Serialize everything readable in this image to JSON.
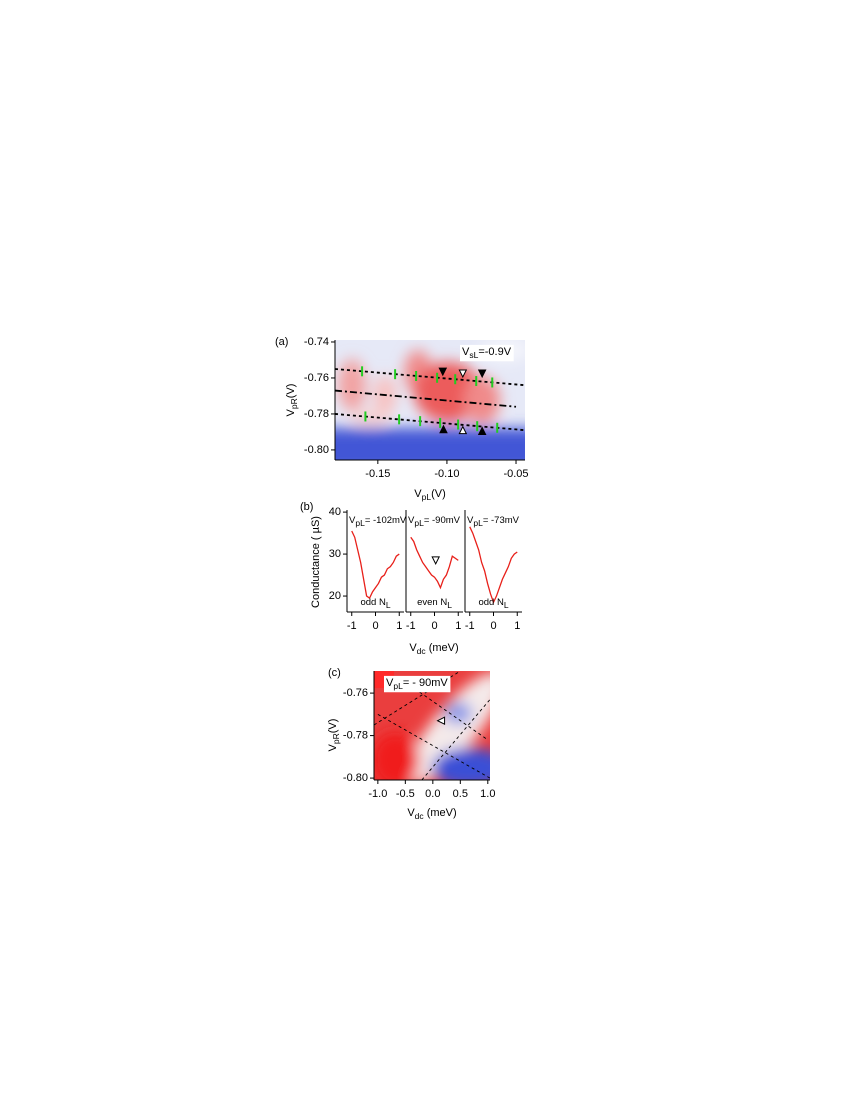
{
  "chart_data": [
    {
      "type": "heatmap",
      "panel_label": "(a)",
      "x_label": [
        "V",
        "pL",
        "(V)"
      ],
      "y_label": [
        "V",
        "pR",
        "(V)"
      ],
      "annotation": [
        "V",
        "sL",
        "=-0.9V"
      ],
      "xlim": [
        -0.181,
        -0.0435
      ],
      "ylim": [
        -0.8056,
        -0.7389
      ],
      "xticks": [
        {
          "value": -0.15,
          "label": "-0.15"
        },
        {
          "value": -0.1,
          "label": "-0.10"
        },
        {
          "value": -0.05,
          "label": "-0.05"
        }
      ],
      "yticks": [
        -0.74,
        -0.76,
        -0.78,
        {
          "value": -0.8,
          "label": "-0.80"
        }
      ],
      "lines": [
        {
          "style": "dashed",
          "x": [
            -0.181,
            -0.044
          ],
          "y": [
            -0.755,
            -0.764
          ]
        },
        {
          "style": "dash-dot",
          "x": [
            -0.181,
            -0.05
          ],
          "y": [
            -0.767,
            -0.776
          ]
        },
        {
          "style": "dashed",
          "x": [
            -0.181,
            -0.044
          ],
          "y": [
            -0.78,
            -0.789
          ]
        }
      ],
      "ticks": {
        "color": "#22cc22",
        "x": [
          -0.1614,
          -0.1375,
          -0.1223,
          -0.1071,
          -0.094,
          -0.0788,
          -0.0672,
          -0.159,
          -0.1346,
          -0.1194,
          -0.1049,
          -0.0919,
          -0.0781,
          -0.0636
        ],
        "y": [
          -0.7563,
          -0.7579,
          -0.7589,
          -0.7599,
          -0.7607,
          -0.7617,
          -0.7625,
          -0.7814,
          -0.783,
          -0.784,
          -0.785,
          -0.7859,
          -0.7868,
          -0.7877
        ]
      },
      "markers": [
        {
          "shape": "down",
          "filled": true,
          "x": -0.103,
          "y": -0.7565
        },
        {
          "shape": "down",
          "filled": false,
          "x": -0.0885,
          "y": -0.7575
        },
        {
          "shape": "down",
          "filled": true,
          "x": -0.0745,
          "y": -0.7575
        },
        {
          "shape": "up",
          "filled": true,
          "x": -0.1025,
          "y": -0.7885
        },
        {
          "shape": "up",
          "filled": false,
          "x": -0.0885,
          "y": -0.789
        },
        {
          "shape": "up",
          "filled": true,
          "x": -0.0745,
          "y": -0.7895
        }
      ]
    },
    {
      "type": "line",
      "panel_label": "(b)",
      "x_label": [
        "V",
        "dc",
        " (meV)"
      ],
      "y_label": [
        "Conductance ( µS)"
      ],
      "xlim": [
        -1.2,
        1.2
      ],
      "ylim": [
        16.2,
        40.5
      ],
      "xticks": [
        -1,
        0,
        1
      ],
      "yticks": [
        20,
        30,
        40
      ],
      "x": [
        -1,
        -0.875,
        -0.75,
        -0.625,
        -0.5,
        -0.375,
        -0.25,
        -0.125,
        0,
        0.125,
        0.25,
        0.375,
        0.5,
        0.625,
        0.75,
        0.875,
        1
      ],
      "series": [
        {
          "label": [
            "V",
            "pL",
            "= -102mV"
          ],
          "note": [
            "odd N",
            "L"
          ],
          "color": "#e8201a",
          "values": [
            35.5,
            34,
            31,
            28,
            24,
            20,
            19.5,
            21,
            22,
            23,
            24.5,
            25,
            26.5,
            27,
            28,
            29.5,
            30
          ]
        },
        {
          "label": [
            "V",
            "pL",
            "= -90mV"
          ],
          "note": [
            "even N",
            "L"
          ],
          "color": "#e8201a",
          "values": [
            34,
            33,
            31,
            29.5,
            28,
            27,
            26,
            25,
            24.5,
            23.5,
            22,
            24,
            25,
            27,
            29.5,
            29,
            28.5
          ]
        },
        {
          "label": [
            "V",
            "pL",
            "= -73mV"
          ],
          "note": [
            "odd N",
            "L"
          ],
          "color": "#e8201a",
          "values": [
            36.5,
            35,
            33,
            31,
            28,
            26,
            23,
            20.5,
            18.5,
            20,
            22,
            24,
            25.5,
            27,
            29,
            30,
            30.5
          ]
        }
      ],
      "markers": [
        {
          "shape": "down",
          "filled": false,
          "series": 1,
          "x": 0.05,
          "y": 28.5
        }
      ]
    },
    {
      "type": "heatmap",
      "panel_label": "(c)",
      "x_label": [
        "V",
        "dc",
        " (meV)"
      ],
      "y_label": [
        "V",
        "pR",
        "(V)"
      ],
      "annotation": [
        "V",
        "pL",
        "= - 90mV"
      ],
      "xlim": [
        -1.07,
        1.04
      ],
      "ylim": [
        -0.8009,
        -0.7496
      ],
      "xticks": [
        {
          "value": -1,
          "label": "-1.0"
        },
        -0.5,
        {
          "value": 0,
          "label": "0.0"
        },
        0.5,
        {
          "value": 1,
          "label": "1.0"
        }
      ],
      "yticks": [
        -0.76,
        -0.78,
        {
          "value": -0.8,
          "label": "-0.80"
        }
      ],
      "lines": [
        {
          "style": "dashed",
          "x": [
            -1.07,
            0.5
          ],
          "y": [
            -0.775,
            -0.7496
          ]
        },
        {
          "style": "dashed",
          "x": [
            -0.2,
            1.04
          ],
          "y": [
            -0.8009,
            -0.763
          ]
        },
        {
          "style": "dashed",
          "x": [
            -0.6,
            1.0
          ],
          "y": [
            -0.753,
            -0.782
          ]
        },
        {
          "style": "dashed",
          "x": [
            -1.0,
            1.04
          ],
          "y": [
            -0.77,
            -0.8
          ]
        }
      ],
      "markers": [
        {
          "shape": "left",
          "filled": false,
          "x": 0.15,
          "y": -0.773
        }
      ]
    }
  ]
}
